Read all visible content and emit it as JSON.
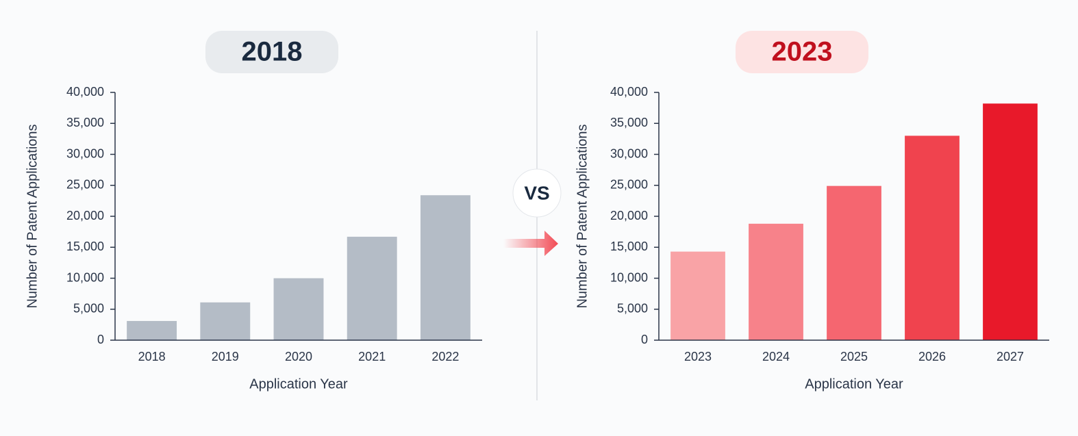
{
  "vs_label": "VS",
  "chart_data": [
    {
      "type": "bar",
      "title": "2018",
      "x_label": "Application Year",
      "y_label": "Number of Patent Applications",
      "categories": [
        "2018",
        "2019",
        "2020",
        "2021",
        "2022"
      ],
      "values": [
        3100,
        6100,
        10000,
        16700,
        23400
      ],
      "color": "#b4bcc6",
      "ylim": [
        0,
        40000
      ],
      "yticks": [
        0,
        {
          "value": 5000,
          "label": "5,000"
        },
        {
          "value": 10000,
          "label": "10,000"
        },
        {
          "value": 15000,
          "label": "15,000"
        },
        {
          "value": 20000,
          "label": "20,000"
        },
        {
          "value": 25000,
          "label": "25,000"
        },
        {
          "value": 30000,
          "label": "30,000"
        },
        {
          "value": 35000,
          "label": "35,000"
        },
        {
          "value": 40000,
          "label": "40,000"
        }
      ]
    },
    {
      "type": "bar",
      "title": "2023",
      "x_label": "Application Year",
      "y_label": "Number of Patent Applications",
      "categories": [
        "2023",
        "2024",
        "2025",
        "2026",
        "2027"
      ],
      "values": [
        14300,
        18800,
        24900,
        33000,
        38200
      ],
      "colors": [
        "#f9a3a6",
        "#f7828a",
        "#f56670",
        "#f0434e",
        "#e8192a"
      ],
      "ylim": [
        0,
        40000
      ],
      "yticks": [
        0,
        {
          "value": 5000,
          "label": "5,000"
        },
        {
          "value": 10000,
          "label": "10,000"
        },
        {
          "value": 15000,
          "label": "15,000"
        },
        {
          "value": 20000,
          "label": "20,000"
        },
        {
          "value": 25000,
          "label": "25,000"
        },
        {
          "value": 30000,
          "label": "30,000"
        },
        {
          "value": 35000,
          "label": "35,000"
        },
        {
          "value": 40000,
          "label": "40,000"
        }
      ]
    }
  ]
}
